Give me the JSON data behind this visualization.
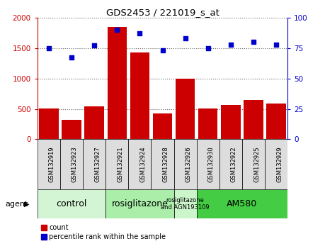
{
  "title": "GDS2453 / 221019_s_at",
  "samples": [
    "GSM132919",
    "GSM132923",
    "GSM132927",
    "GSM132921",
    "GSM132924",
    "GSM132928",
    "GSM132926",
    "GSM132930",
    "GSM132922",
    "GSM132925",
    "GSM132929"
  ],
  "counts": [
    510,
    320,
    540,
    1850,
    1430,
    430,
    1000,
    510,
    570,
    650,
    590
  ],
  "percentiles": [
    75,
    67,
    77,
    90,
    87,
    73,
    83,
    75,
    78,
    80,
    78
  ],
  "ylim_left": [
    0,
    2000
  ],
  "ylim_right": [
    0,
    100
  ],
  "yticks_left": [
    0,
    500,
    1000,
    1500,
    2000
  ],
  "yticks_right": [
    0,
    25,
    50,
    75,
    100
  ],
  "bar_color": "#cc0000",
  "dot_color": "#0000cc",
  "groups": [
    {
      "label": "control",
      "start": 0,
      "end": 3,
      "color": "#d4f5d4",
      "text_size": 9
    },
    {
      "label": "rosiglitazone",
      "start": 3,
      "end": 6,
      "color": "#aaeeaa",
      "text_size": 9
    },
    {
      "label": "rosiglitazone\nand AGN193109",
      "start": 6,
      "end": 7,
      "color": "#ccf5cc",
      "text_size": 6
    },
    {
      "label": "AM580",
      "start": 7,
      "end": 11,
      "color": "#44cc44",
      "text_size": 9
    }
  ],
  "agent_label": "agent",
  "legend_count_label": "count",
  "legend_pct_label": "percentile rank within the sample",
  "bg_color": "#ffffff",
  "sample_box_color": "#dddddd",
  "tick_label_color_left": "#cc0000",
  "tick_label_color_right": "#0000cc"
}
